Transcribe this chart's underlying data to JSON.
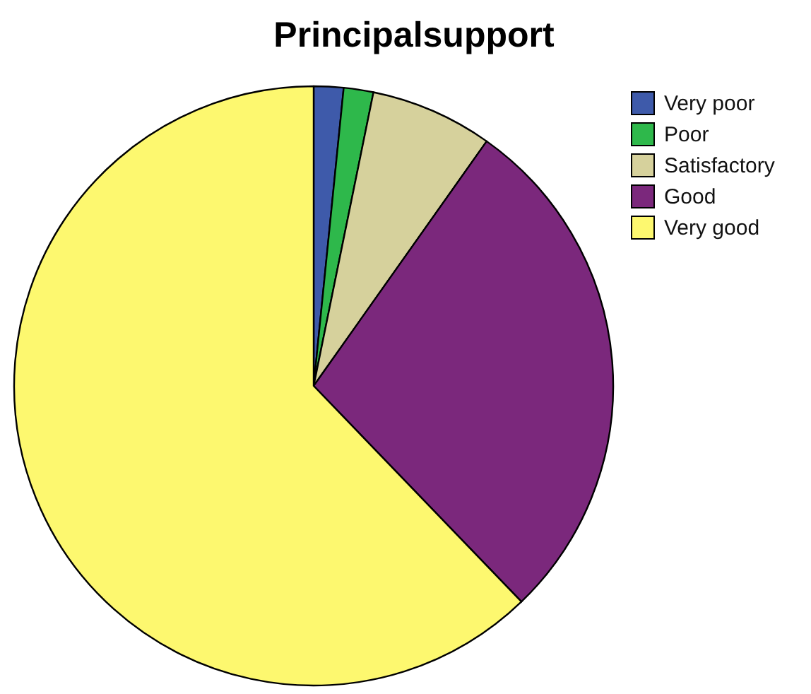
{
  "chart_data": {
    "type": "pie",
    "title": "Principalsupport",
    "categories": [
      "Very poor",
      "Poor",
      "Satisfactory",
      "Good",
      "Very good"
    ],
    "values": [
      1.6,
      1.6,
      6.6,
      28.0,
      62.2
    ],
    "colors": [
      "#3e5aaa",
      "#2eb84b",
      "#d6d19c",
      "#7b287c",
      "#fdf86f"
    ],
    "legend": "top right"
  }
}
